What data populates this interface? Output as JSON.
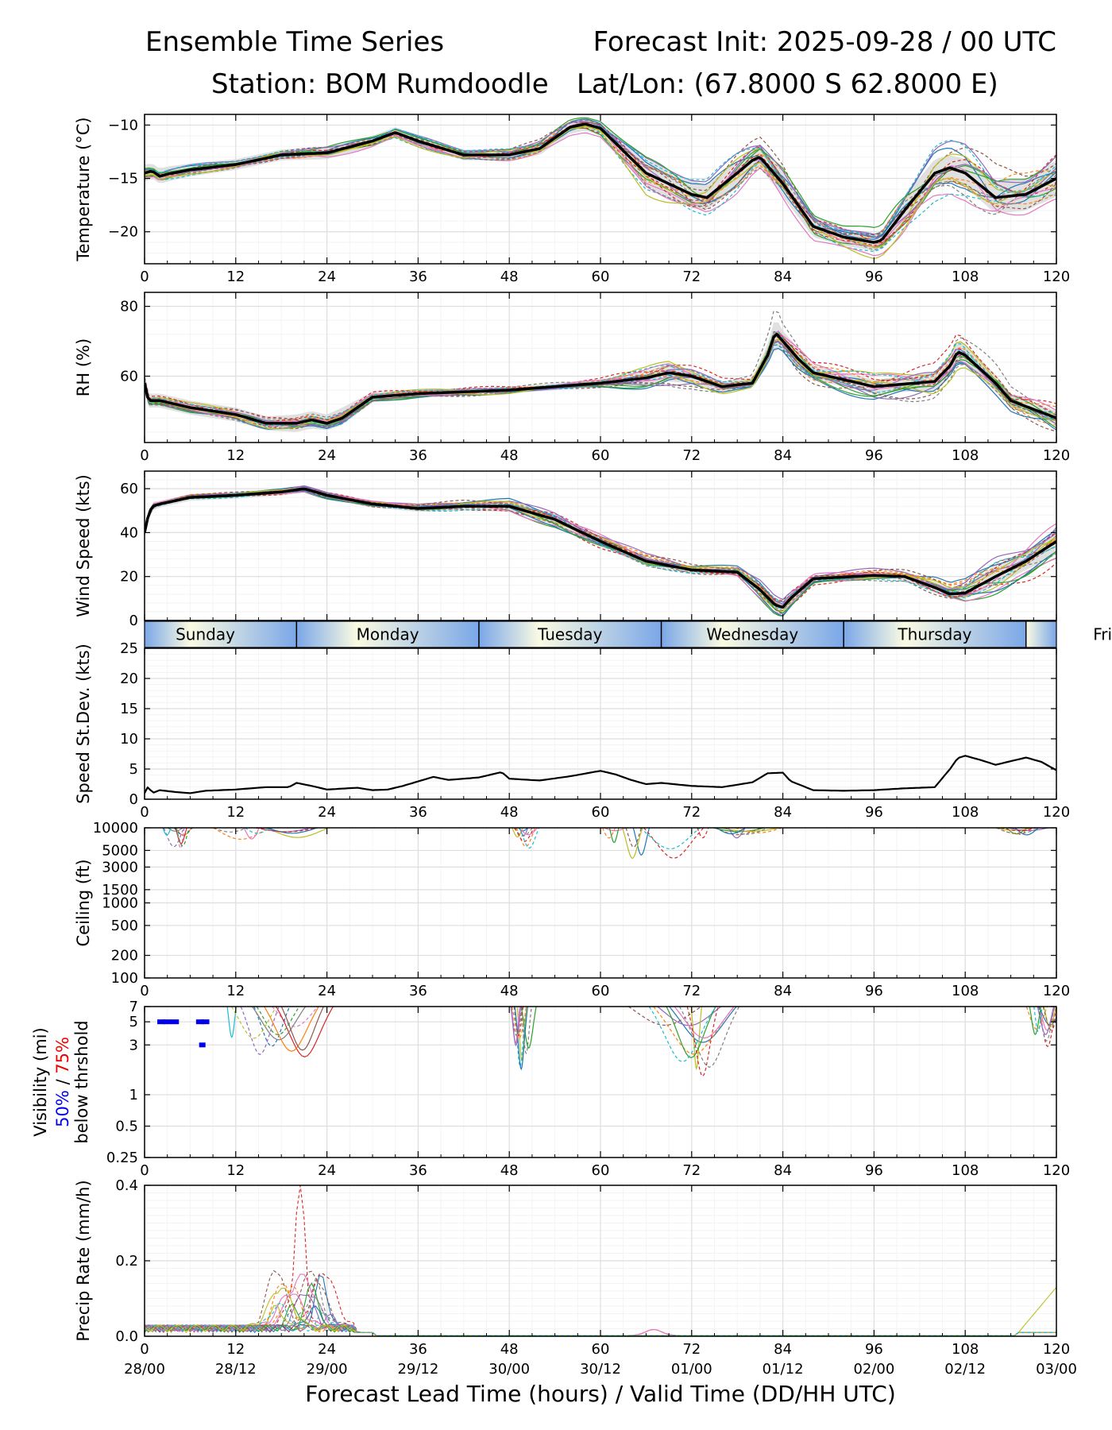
{
  "header": {
    "title_left": "Ensemble Time Series",
    "title_right": "Forecast Init: 2025-09-28 / 00 UTC",
    "station": "Station: BOM Rumdoodle",
    "latlon": "Lat/Lon: (67.8000 S 62.8000 E)"
  },
  "x_axis": {
    "xlim": [
      0,
      120
    ],
    "tick_labels": [
      "0",
      "12",
      "24",
      "36",
      "48",
      "60",
      "72",
      "84",
      "96",
      "108",
      "120"
    ],
    "valid_time_labels": [
      "28/00",
      "28/12",
      "29/00",
      "29/12",
      "30/00",
      "30/12",
      "01/00",
      "01/12",
      "02/00",
      "02/12",
      "03/00"
    ],
    "xlabel": "Forecast Lead Time (hours) / Valid Time (DD/HH UTC)"
  },
  "day_bar": {
    "labels": [
      "Sunday",
      "Monday",
      "Tuesday",
      "Wednesday",
      "Thursday",
      "Friday"
    ],
    "boundaries_hours": [
      20,
      44,
      68,
      92,
      116
    ],
    "colors": {
      "day": "#fbfbe2",
      "night": "#7aa7e8"
    }
  },
  "colors": {
    "mean": "#000000",
    "spread": "#dddddd",
    "members": [
      "#1f77b4",
      "#ff7f0e",
      "#2ca02c",
      "#d62728",
      "#9467bd",
      "#8c564b",
      "#e377c2",
      "#7f7f7f",
      "#bcbd22",
      "#17becf"
    ],
    "vis_50": "#0000ee",
    "vis_75": "#ee0000"
  },
  "chart_data": [
    {
      "type": "line",
      "name": "temperature",
      "ylabel": "Temperature (°C)",
      "ylim": [
        -23,
        -9
      ],
      "yticks": [
        -20,
        -15,
        -10
      ],
      "ytick_labels": [
        "−20",
        "−15",
        "−10"
      ],
      "x": [
        0,
        1,
        2,
        3,
        6,
        12,
        18,
        24,
        30,
        33,
        36,
        42,
        48,
        52,
        56,
        58,
        60,
        66,
        72,
        74,
        78,
        80,
        81,
        84,
        88,
        92,
        96,
        97,
        100,
        104,
        106,
        108,
        112,
        116,
        120
      ],
      "mean": [
        -14.5,
        -14.3,
        -14.8,
        -14.6,
        -14.2,
        -13.7,
        -12.8,
        -12.6,
        -11.5,
        -10.7,
        -11.5,
        -12.8,
        -12.8,
        -12.2,
        -10.2,
        -9.9,
        -10.3,
        -14.5,
        -16.5,
        -16.8,
        -14.5,
        -13.3,
        -13.0,
        -15.5,
        -19.5,
        -20.5,
        -21.0,
        -20.8,
        -18.0,
        -14.5,
        -14.0,
        -14.5,
        -16.8,
        -16.5,
        -15.0
      ],
      "spread_lo": [
        -15.3,
        -15.0,
        -15.5,
        -15.3,
        -14.8,
        -14.2,
        -13.3,
        -13.2,
        -12.0,
        -11.2,
        -12.0,
        -13.3,
        -13.3,
        -12.8,
        -10.8,
        -10.5,
        -11.0,
        -15.8,
        -17.8,
        -18.0,
        -15.7,
        -14.3,
        -14.0,
        -16.7,
        -20.5,
        -21.3,
        -21.8,
        -21.6,
        -19.3,
        -15.8,
        -15.2,
        -15.8,
        -18.3,
        -18.0,
        -16.7
      ],
      "spread_hi": [
        -13.7,
        -13.6,
        -14.1,
        -13.9,
        -13.6,
        -13.2,
        -12.3,
        -12.0,
        -11.0,
        -10.2,
        -11.0,
        -12.3,
        -12.3,
        -11.6,
        -9.6,
        -9.3,
        -9.6,
        -13.2,
        -15.2,
        -15.6,
        -13.3,
        -12.3,
        -12.0,
        -14.3,
        -18.5,
        -19.7,
        -20.2,
        -20.0,
        -16.7,
        -13.2,
        -12.8,
        -13.2,
        -15.3,
        -15.0,
        -13.3
      ]
    },
    {
      "type": "line",
      "name": "rh",
      "ylabel": "RH (%)",
      "ylim": [
        41,
        84
      ],
      "yticks": [
        60,
        80
      ],
      "ytick_labels": [
        "60",
        "80"
      ],
      "x": [
        0,
        0.5,
        2,
        6,
        12,
        16,
        20,
        22,
        24,
        26,
        30,
        36,
        48,
        60,
        66,
        69,
        72,
        76,
        80,
        82,
        83,
        84,
        86,
        88,
        96,
        104,
        106,
        107,
        108,
        112,
        114,
        120
      ],
      "mean": [
        58,
        53,
        53,
        51,
        49,
        46.5,
        46.5,
        47.5,
        46.5,
        48,
        54,
        55,
        56,
        58,
        59.5,
        61,
        60,
        57,
        58,
        66,
        72.5,
        70,
        65,
        61,
        57,
        58.5,
        63,
        67,
        66,
        58,
        53,
        48
      ],
      "spread_lo": [
        55,
        51,
        51,
        49,
        47,
        44.5,
        44,
        45,
        44.5,
        46,
        52.5,
        54,
        55,
        57,
        57.5,
        58.5,
        58,
        55.5,
        56.5,
        63,
        68,
        67,
        62,
        59,
        55,
        56,
        60,
        63.5,
        63,
        55.5,
        51,
        46
      ],
      "spread_hi": [
        61,
        55,
        55,
        53,
        51,
        48.5,
        49,
        50,
        49,
        51,
        55.5,
        56,
        57,
        59,
        61.5,
        63.5,
        62,
        58.5,
        59.5,
        69,
        77,
        73,
        68,
        63,
        59,
        61,
        66,
        70.5,
        69,
        60.5,
        55,
        50
      ]
    },
    {
      "type": "line",
      "name": "wind_speed",
      "ylabel": "Wind Speed (kts)",
      "ylim": [
        0,
        68
      ],
      "yticks": [
        0,
        20,
        40,
        60
      ],
      "ytick_labels": [
        "0",
        "20",
        "40",
        "60"
      ],
      "x": [
        0,
        0.5,
        1,
        2,
        6,
        12,
        18,
        21,
        24,
        30,
        36,
        42,
        48,
        54,
        60,
        66,
        72,
        78,
        81,
        83,
        84,
        85,
        88,
        96,
        100,
        104,
        106,
        108,
        112,
        116,
        120
      ],
      "mean": [
        40,
        48,
        52,
        53,
        56,
        57,
        58.5,
        60,
        57,
        53,
        51,
        52,
        52,
        46,
        36,
        27,
        23,
        22,
        14,
        7,
        6,
        10,
        19,
        20.5,
        20,
        15,
        12,
        12.5,
        20,
        27,
        36
      ],
      "spread_lo": [
        38,
        46,
        50,
        51.5,
        54.5,
        55.5,
        57,
        58.5,
        55.5,
        51.5,
        49.5,
        50,
        49.5,
        43.5,
        33.5,
        25,
        21.5,
        20.5,
        11.5,
        4.5,
        3.5,
        7.5,
        17.5,
        19,
        18.5,
        12.5,
        10,
        10,
        16,
        23,
        30
      ],
      "spread_hi": [
        42,
        50,
        54,
        54.5,
        57.5,
        58.5,
        60,
        61.5,
        58.5,
        54.5,
        52.5,
        54,
        54.5,
        48.5,
        38.5,
        29,
        24.5,
        23.5,
        16.5,
        9.5,
        8.5,
        12.5,
        20.5,
        22,
        21.5,
        17.5,
        14.5,
        16,
        25,
        32,
        40
      ]
    },
    {
      "type": "line",
      "name": "speed_stdev",
      "ylabel": "Speed St.Dev. (kts)",
      "ylim": [
        0,
        25
      ],
      "yticks": [
        0,
        5,
        10,
        15,
        20,
        25
      ],
      "ytick_labels": [
        "0",
        "5",
        "10",
        "15",
        "20",
        "25"
      ],
      "x": [
        0,
        0.5,
        1,
        2,
        4,
        6,
        8,
        12,
        16,
        19,
        20,
        22,
        24,
        28,
        30,
        32,
        34,
        38,
        40,
        44,
        46,
        47,
        48,
        52,
        56,
        60,
        62,
        64,
        66,
        68,
        72,
        76,
        80,
        82,
        84,
        85,
        88,
        92,
        96,
        100,
        104,
        106,
        107,
        108,
        110,
        112,
        114,
        116,
        118,
        120
      ],
      "values": [
        1,
        2.2,
        1,
        1.5,
        1.2,
        1,
        1.4,
        1.6,
        2,
        2,
        2.7,
        2.2,
        1.6,
        1.9,
        1.5,
        1.6,
        2.2,
        3.7,
        3.2,
        3.6,
        4.2,
        4.5,
        3.4,
        3.1,
        3.8,
        4.7,
        4.1,
        3.2,
        2.5,
        2.7,
        2.2,
        2,
        2.8,
        4.3,
        4.4,
        3,
        1.5,
        1.4,
        1.5,
        1.8,
        2,
        5,
        6.8,
        7.2,
        6.5,
        5.7,
        6.3,
        6.9,
        6.2,
        4.8
      ]
    },
    {
      "type": "line",
      "name": "ceiling",
      "ylabel": "Ceiling (ft)",
      "yscale": "log",
      "ylim": [
        100,
        10000
      ],
      "yticks": [
        100,
        200,
        500,
        1000,
        1500,
        3000,
        5000,
        10000
      ],
      "ytick_labels": [
        "100",
        "200",
        "500",
        "1000",
        "1500",
        "3000",
        "5000",
        "10000"
      ]
    },
    {
      "type": "line",
      "name": "visibility",
      "ylabel": "Visibility (mi)",
      "ylabel_50": "50%",
      "ylabel_sep": " / ",
      "ylabel_75": "75%",
      "ylabel_2": "below thrshold",
      "yscale": "log",
      "ylim": [
        0.25,
        7
      ],
      "yticks": [
        0.25,
        0.5,
        1,
        3,
        5,
        7
      ],
      "ytick_labels": [
        "0.25",
        "0.5",
        "1",
        "3",
        "5",
        "7"
      ],
      "threshold_50_hours": [
        2.2,
        3,
        4,
        7.3,
        8
      ],
      "threshold_50_value": 5,
      "threshold_75_hours": [
        7.6
      ],
      "threshold_75_value": 3
    },
    {
      "type": "line",
      "name": "precip_rate",
      "ylabel": "Precip Rate (mm/h)",
      "ylim": [
        0,
        0.4
      ],
      "yticks": [
        0,
        0.2,
        0.4
      ],
      "ytick_labels": [
        "0.0",
        "0.2",
        "0.4"
      ],
      "peak_hours": 20.5,
      "peak_value": 0.33
    }
  ]
}
